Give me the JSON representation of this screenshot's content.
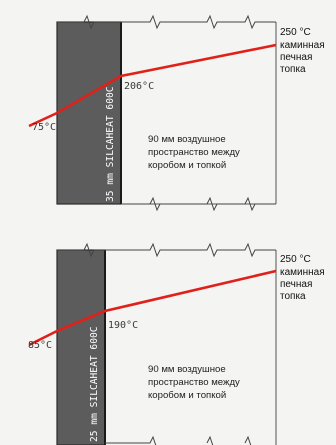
{
  "colors": {
    "background": "#f4f4f2",
    "insulation_board": "#5c5c5c",
    "outline": "#2b2b2b",
    "temperature_line": "#e0201a",
    "label_text": "#3a3a3a",
    "board_text": "#ffffff"
  },
  "top_diagram": {
    "board_label": "35 mm SILCAHEAT 600C",
    "temp_outside": "75°C",
    "temp_interface": "206°C",
    "air_gap_note": [
      "90 мм воздушное",
      "пространство между",
      "коробом и топкой"
    ],
    "firebox_temp": "250 °C",
    "firebox_label": [
      "каминная",
      "печная",
      "топка"
    ]
  },
  "bottom_diagram": {
    "board_label": "25 mm SILCAHEAT 600C",
    "temp_outside": "85°C",
    "temp_interface": "190°C",
    "air_gap_note": [
      "90 мм воздушное",
      "пространство между",
      "коробом и топкой"
    ],
    "firebox_temp": "250 °C",
    "firebox_label": [
      "каминная",
      "печная",
      "топка"
    ]
  }
}
